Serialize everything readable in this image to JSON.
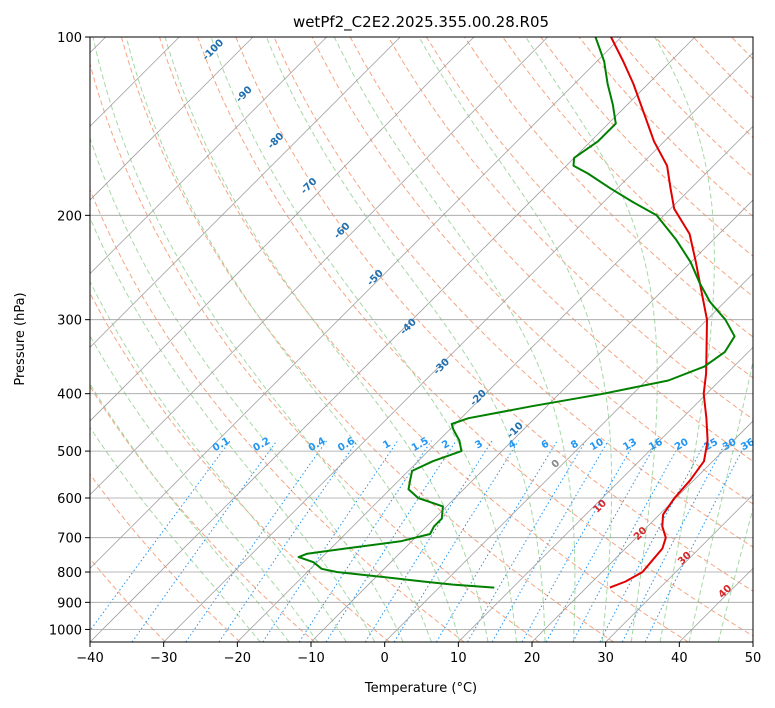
{
  "colors": {
    "temperature": "#e00000",
    "dewpoint": "#008000",
    "isotherm": "#a0a0a0",
    "isobar": "#a0a0a0",
    "dry_adiabat": "#f4a582",
    "moist_adiabat": "#a6d8a6",
    "mixing_ratio": "#2196f3",
    "dry_label": "#1f6fb0",
    "moist_label": "#d62728"
  },
  "chart_data": {
    "type": "line",
    "subtype": "skew-T log-P",
    "title": "wetPf2_C2E2.2025.355.00.28.R05",
    "xlabel": "Temperature (°C)",
    "ylabel": "Pressure (hPa)",
    "xlim": [
      -40,
      50
    ],
    "ylim": [
      1050,
      100
    ],
    "x_ticks": [
      -40,
      -30,
      -20,
      -10,
      0,
      10,
      20,
      30,
      40,
      50
    ],
    "x_tick_labels": [
      "−40",
      "−30",
      "−20",
      "−10",
      "0",
      "10",
      "20",
      "30",
      "40",
      "50"
    ],
    "y_ticks": [
      1000,
      900,
      800,
      700,
      600,
      500,
      400,
      300,
      200,
      100
    ],
    "y_tick_labels": [
      "1000",
      "900",
      "800",
      "700",
      "600",
      "500",
      "400",
      "300",
      "200",
      "100"
    ],
    "grid": true,
    "series": [
      {
        "name": "temperature",
        "points": [
          {
            "p": 850,
            "t": 23.2
          },
          {
            "p": 830,
            "t": 24.5
          },
          {
            "p": 800,
            "t": 25.5
          },
          {
            "p": 770,
            "t": 25.3
          },
          {
            "p": 730,
            "t": 25.0
          },
          {
            "p": 700,
            "t": 24.0
          },
          {
            "p": 670,
            "t": 22.0
          },
          {
            "p": 640,
            "t": 20.5
          },
          {
            "p": 600,
            "t": 19.8
          },
          {
            "p": 560,
            "t": 19.5
          },
          {
            "p": 520,
            "t": 18.8
          },
          {
            "p": 480,
            "t": 16.5
          },
          {
            "p": 440,
            "t": 13.3
          },
          {
            "p": 400,
            "t": 9.6
          },
          {
            "p": 370,
            "t": 7.2
          },
          {
            "p": 340,
            "t": 4.3
          },
          {
            "p": 300,
            "t": 0.0
          },
          {
            "p": 270,
            "t": -4.4
          },
          {
            "p": 240,
            "t": -9.3
          },
          {
            "p": 215,
            "t": -14.0
          },
          {
            "p": 195,
            "t": -19.5
          },
          {
            "p": 180,
            "t": -22.8
          },
          {
            "p": 165,
            "t": -26.3
          },
          {
            "p": 150,
            "t": -31.4
          },
          {
            "p": 135,
            "t": -36.4
          },
          {
            "p": 120,
            "t": -42.0
          },
          {
            "p": 110,
            "t": -46.4
          },
          {
            "p": 100,
            "t": -51.4
          }
        ]
      },
      {
        "name": "dewpoint",
        "points": [
          {
            "p": 850,
            "t": 7.5
          },
          {
            "p": 840,
            "t": 1.5
          },
          {
            "p": 830,
            "t": -3.0
          },
          {
            "p": 810,
            "t": -11.5
          },
          {
            "p": 800,
            "t": -16.0
          },
          {
            "p": 790,
            "t": -18.5
          },
          {
            "p": 770,
            "t": -20.5
          },
          {
            "p": 755,
            "t": -23.2
          },
          {
            "p": 745,
            "t": -22.5
          },
          {
            "p": 730,
            "t": -18.0
          },
          {
            "p": 710,
            "t": -11.5
          },
          {
            "p": 690,
            "t": -8.5
          },
          {
            "p": 670,
            "t": -9.0
          },
          {
            "p": 650,
            "t": -9.0
          },
          {
            "p": 620,
            "t": -10.5
          },
          {
            "p": 600,
            "t": -15.0
          },
          {
            "p": 580,
            "t": -17.5
          },
          {
            "p": 560,
            "t": -18.5
          },
          {
            "p": 540,
            "t": -19.5
          },
          {
            "p": 520,
            "t": -18.0
          },
          {
            "p": 500,
            "t": -15.5
          },
          {
            "p": 480,
            "t": -17.2
          },
          {
            "p": 460,
            "t": -19.5
          },
          {
            "p": 450,
            "t": -20.5
          },
          {
            "p": 440,
            "t": -19.0
          },
          {
            "p": 420,
            "t": -12.0
          },
          {
            "p": 400,
            "t": -4.0
          },
          {
            "p": 380,
            "t": 3.0
          },
          {
            "p": 360,
            "t": 6.0
          },
          {
            "p": 340,
            "t": 6.8
          },
          {
            "p": 320,
            "t": 6.0
          },
          {
            "p": 300,
            "t": 2.5
          },
          {
            "p": 280,
            "t": -2.0
          },
          {
            "p": 260,
            "t": -6.0
          },
          {
            "p": 240,
            "t": -10.0
          },
          {
            "p": 220,
            "t": -15.0
          },
          {
            "p": 200,
            "t": -21.0
          },
          {
            "p": 190,
            "t": -26.0
          },
          {
            "p": 180,
            "t": -31.0
          },
          {
            "p": 170,
            "t": -36.0
          },
          {
            "p": 165,
            "t": -39.0
          },
          {
            "p": 160,
            "t": -40.0
          },
          {
            "p": 150,
            "t": -39.0
          },
          {
            "p": 140,
            "t": -39.0
          },
          {
            "p": 130,
            "t": -42.0
          },
          {
            "p": 120,
            "t": -45.5
          },
          {
            "p": 110,
            "t": -49.0
          },
          {
            "p": 100,
            "t": -53.5
          }
        ]
      }
    ],
    "dry_adiabat_labels": [
      {
        "text": "-100",
        "x": -23.0,
        "p": 106
      },
      {
        "text": "-90",
        "x": -18.8,
        "p": 126
      },
      {
        "text": "-80",
        "x": -14.5,
        "p": 151
      },
      {
        "text": "-70",
        "x": -10.0,
        "p": 180
      },
      {
        "text": "-60",
        "x": -5.5,
        "p": 214
      },
      {
        "text": "-50",
        "x": -1.0,
        "p": 257
      },
      {
        "text": "-40",
        "x": 3.5,
        "p": 311
      },
      {
        "text": "-30",
        "x": 8.0,
        "p": 363
      },
      {
        "text": "-20",
        "x": 13.0,
        "p": 410
      },
      {
        "text": "-10",
        "x": 18.0,
        "p": 465
      }
    ],
    "mixing_ratio_labels": [
      "0.1",
      "0.2",
      "0.4",
      "0.6",
      "1",
      "1.5",
      "2",
      "3",
      "4",
      "6",
      "8",
      "10",
      "13",
      "16",
      "20",
      "25",
      "30",
      "36"
    ],
    "mixing_ratio_label_x": [
      -22,
      -16.5,
      -9,
      -5,
      0.5,
      5,
      8.5,
      13,
      17.5,
      22,
      26,
      29,
      33.5,
      37,
      40.5,
      44.5,
      47,
      49.5
    ],
    "moist_adiabat_labels": [
      {
        "text": "0",
        "x": 23.5,
        "p": 530
      },
      {
        "text": "10",
        "x": 29.5,
        "p": 625
      },
      {
        "text": "20",
        "x": 35.0,
        "p": 695
      },
      {
        "text": "30",
        "x": 41.0,
        "p": 765
      },
      {
        "text": "40",
        "x": 46.5,
        "p": 870
      }
    ]
  }
}
